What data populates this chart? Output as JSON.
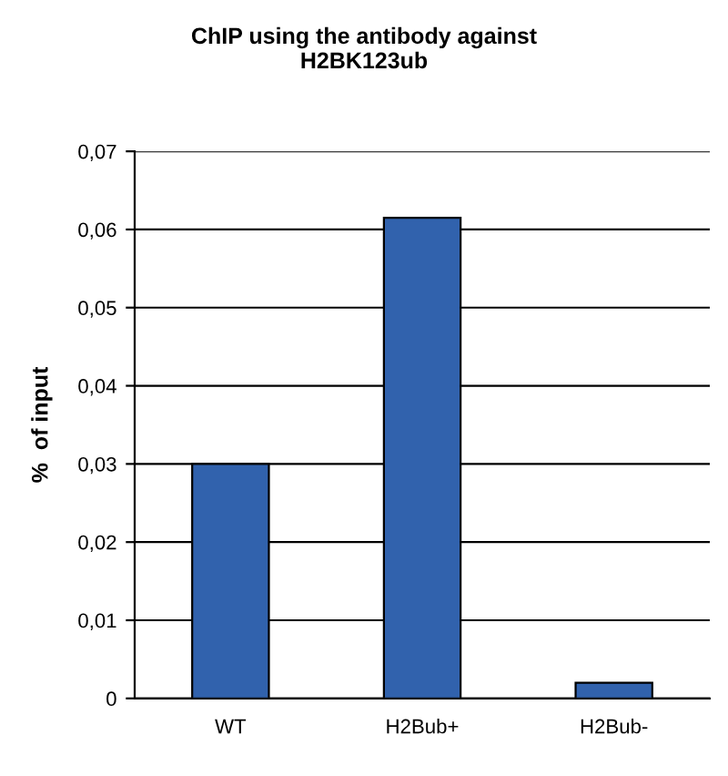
{
  "chart_data": {
    "type": "bar",
    "title": "ChIP using the antibody against\nH2BK123ub",
    "ylabel": "%  of input",
    "categories": [
      "WT",
      "H2Bub+",
      "H2Bub-"
    ],
    "values": [
      0.03,
      0.0615,
      0.002
    ],
    "color": "#3162ad",
    "ylim": [
      0,
      0.07
    ],
    "yticks": [
      {
        "value": 0,
        "label": "0"
      },
      {
        "value": 0.01,
        "label": "0,01"
      },
      {
        "value": 0.02,
        "label": "0,02"
      },
      {
        "value": 0.03,
        "label": "0,03"
      },
      {
        "value": 0.04,
        "label": "0,04"
      },
      {
        "value": 0.05,
        "label": "0,05"
      },
      {
        "value": 0.06,
        "label": "0,06"
      },
      {
        "value": 0.07,
        "label": "0,07"
      }
    ],
    "grid": "y"
  }
}
